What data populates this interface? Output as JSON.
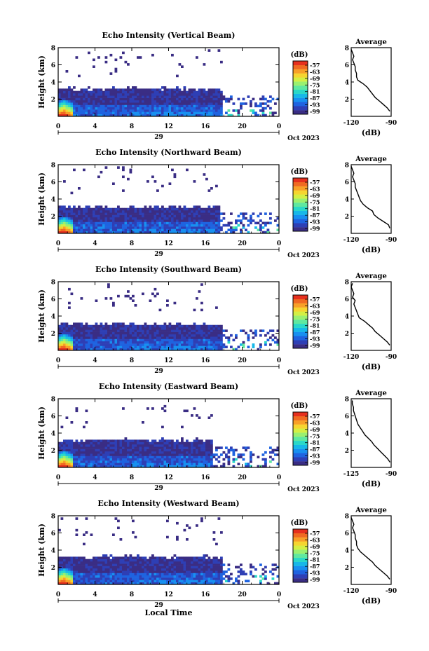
{
  "figure": {
    "bottom_xlabel": "Local Time",
    "cbar_unit": "(dB)",
    "profile_title": "Average",
    "profile_xlabel": "(dB)",
    "date_label": "Oct 2023",
    "day_label": "29"
  },
  "colormap": [
    "#3a2d84",
    "#2e3fb5",
    "#1f63e0",
    "#1890f0",
    "#17b8e8",
    "#2ad8c8",
    "#5fe8a0",
    "#9af070",
    "#d4ef44",
    "#f6d530",
    "#f8a028",
    "#f06a22",
    "#e6301e"
  ],
  "chart_data": [
    {
      "type": "heatmap",
      "title": "Echo Intensity (Vertical Beam)",
      "ylabel": "Height (km)",
      "xlim": [
        0,
        24
      ],
      "ylim": [
        0,
        8
      ],
      "xticks": [
        "0",
        "4",
        "8",
        "12",
        "16",
        "20",
        "0"
      ],
      "yticks": [
        "2",
        "4",
        "6",
        "8"
      ],
      "cbar_ticks": [
        "-57",
        "-63",
        "-69",
        "-75",
        "-81",
        "-87",
        "-93",
        "-99"
      ],
      "layer_top_km": 3.3,
      "layer_end_hour": 17.8,
      "core_hour": 0.6,
      "profile": {
        "xlim": [
          -120,
          -90
        ],
        "ylim": [
          0,
          8
        ],
        "xticks": [
          "-120",
          "-90"
        ],
        "yticks": [
          "2",
          "4",
          "6",
          "8"
        ],
        "height_km": [
          0.6,
          1.0,
          1.4,
          1.8,
          2.2,
          2.6,
          3.0,
          3.4,
          3.8,
          4.2,
          4.6,
          5.0,
          5.4,
          5.8,
          6.2,
          6.6,
          7.0,
          7.4,
          7.8
        ],
        "value_db": [
          -91,
          -93,
          -96,
          -99,
          -102,
          -104,
          -106,
          -108,
          -111,
          -115,
          -116,
          -116,
          -117,
          -117,
          -118,
          -119,
          -118,
          -119,
          -120
        ]
      }
    },
    {
      "type": "heatmap",
      "title": "Echo Intensity (Northward Beam)",
      "ylabel": "Height (km)",
      "xlim": [
        0,
        24
      ],
      "ylim": [
        0,
        8
      ],
      "xticks": [
        "0",
        "4",
        "8",
        "12",
        "16",
        "20",
        "0"
      ],
      "yticks": [
        "2",
        "4",
        "6",
        "8"
      ],
      "cbar_ticks": [
        "-57",
        "-63",
        "-69",
        "-75",
        "-81",
        "-87",
        "-93",
        "-99"
      ],
      "layer_top_km": 3.2,
      "layer_end_hour": 17.5,
      "core_hour": 0.6,
      "profile": {
        "xlim": [
          -120,
          -90
        ],
        "ylim": [
          0,
          8
        ],
        "xticks": [
          "-120",
          "-90"
        ],
        "yticks": [
          "2",
          "4",
          "6",
          "8"
        ],
        "height_km": [
          0.6,
          1.0,
          1.4,
          1.8,
          2.2,
          2.6,
          3.0,
          3.4,
          3.8,
          4.2,
          4.6,
          5.0,
          5.4,
          5.8,
          6.2,
          6.6,
          7.0,
          7.4,
          7.8
        ],
        "value_db": [
          -91,
          -92,
          -96,
          -100,
          -103,
          -104,
          -108,
          -111,
          -113,
          -114,
          -115,
          -116,
          -117,
          -117,
          -118,
          -119,
          -118,
          -119,
          -120
        ]
      }
    },
    {
      "type": "heatmap",
      "title": "Echo Intensity (Southward Beam)",
      "ylabel": "Height (km)",
      "xlim": [
        0,
        24
      ],
      "ylim": [
        0,
        8
      ],
      "xticks": [
        "0",
        "4",
        "8",
        "12",
        "16",
        "20",
        "0"
      ],
      "yticks": [
        "2",
        "4",
        "6",
        "8"
      ],
      "cbar_ticks": [
        "-57",
        "-63",
        "-69",
        "-75",
        "-81",
        "-87",
        "-93",
        "-99"
      ],
      "layer_top_km": 3.1,
      "layer_end_hour": 17.8,
      "core_hour": 0.6,
      "profile": {
        "xlim": [
          -120,
          -90
        ],
        "ylim": [
          0,
          8
        ],
        "xticks": [
          "-120",
          "-90"
        ],
        "yticks": [
          "2",
          "4",
          "6",
          "8"
        ],
        "height_km": [
          0.6,
          1.0,
          1.4,
          1.8,
          2.2,
          2.6,
          3.0,
          3.4,
          3.8,
          4.2,
          4.6,
          5.0,
          5.4,
          5.8,
          6.2,
          6.6,
          7.0,
          7.4,
          7.8
        ],
        "value_db": [
          -91,
          -93,
          -96,
          -99,
          -102,
          -104,
          -107,
          -110,
          -114,
          -115,
          -116,
          -117,
          -118,
          -117,
          -119,
          -118,
          -119,
          -120,
          -119
        ]
      }
    },
    {
      "type": "heatmap",
      "title": "Echo Intensity (Eastward Beam)",
      "ylabel": "Height (km)",
      "xlim": [
        0,
        24
      ],
      "ylim": [
        0,
        8
      ],
      "xticks": [
        "0",
        "4",
        "8",
        "12",
        "16",
        "20",
        "0"
      ],
      "yticks": [
        "2",
        "4",
        "6",
        "8"
      ],
      "cbar_ticks": [
        "-57",
        "-63",
        "-69",
        "-75",
        "-81",
        "-87",
        "-93",
        "-99"
      ],
      "layer_top_km": 3.3,
      "layer_end_hour": 16.8,
      "core_hour": 0.6,
      "profile": {
        "xlim": [
          -125,
          -90
        ],
        "ylim": [
          0,
          8
        ],
        "xticks": [
          "-125",
          "-90"
        ],
        "yticks": [
          "2",
          "4",
          "6",
          "8"
        ],
        "height_km": [
          0.6,
          1.0,
          1.4,
          1.8,
          2.2,
          2.6,
          3.0,
          3.4,
          3.8,
          4.2,
          4.6,
          5.0,
          5.4,
          5.8,
          6.2,
          6.6,
          7.0,
          7.4,
          7.8
        ],
        "value_db": [
          -91,
          -93,
          -96,
          -99,
          -102,
          -105,
          -107,
          -110,
          -113,
          -115,
          -117,
          -119,
          -120,
          -121,
          -122,
          -123,
          -123,
          -124,
          -124
        ]
      }
    },
    {
      "type": "heatmap",
      "title": "Echo Intensity (Westward Beam)",
      "ylabel": "Height (km)",
      "xlim": [
        0,
        24
      ],
      "ylim": [
        0,
        8
      ],
      "xticks": [
        "0",
        "4",
        "8",
        "12",
        "16",
        "20",
        "0"
      ],
      "yticks": [
        "2",
        "4",
        "6",
        "8"
      ],
      "cbar_ticks": [
        "-57",
        "-63",
        "-69",
        "-75",
        "-81",
        "-87",
        "-93",
        "-99"
      ],
      "layer_top_km": 3.3,
      "layer_end_hour": 17.8,
      "core_hour": 0.6,
      "profile": {
        "xlim": [
          -120,
          -90
        ],
        "ylim": [
          0,
          8
        ],
        "xticks": [
          "-120",
          "-90"
        ],
        "yticks": [
          "2",
          "4",
          "6",
          "8"
        ],
        "height_km": [
          0.6,
          1.0,
          1.4,
          1.8,
          2.2,
          2.6,
          3.0,
          3.4,
          3.8,
          4.2,
          4.6,
          5.0,
          5.4,
          5.8,
          6.2,
          6.6,
          7.0,
          7.4,
          7.8
        ],
        "value_db": [
          -91,
          -93,
          -96,
          -99,
          -102,
          -104,
          -107,
          -110,
          -113,
          -115,
          -116,
          -116,
          -117,
          -117,
          -118,
          -119,
          -118,
          -119,
          -120
        ]
      }
    }
  ]
}
